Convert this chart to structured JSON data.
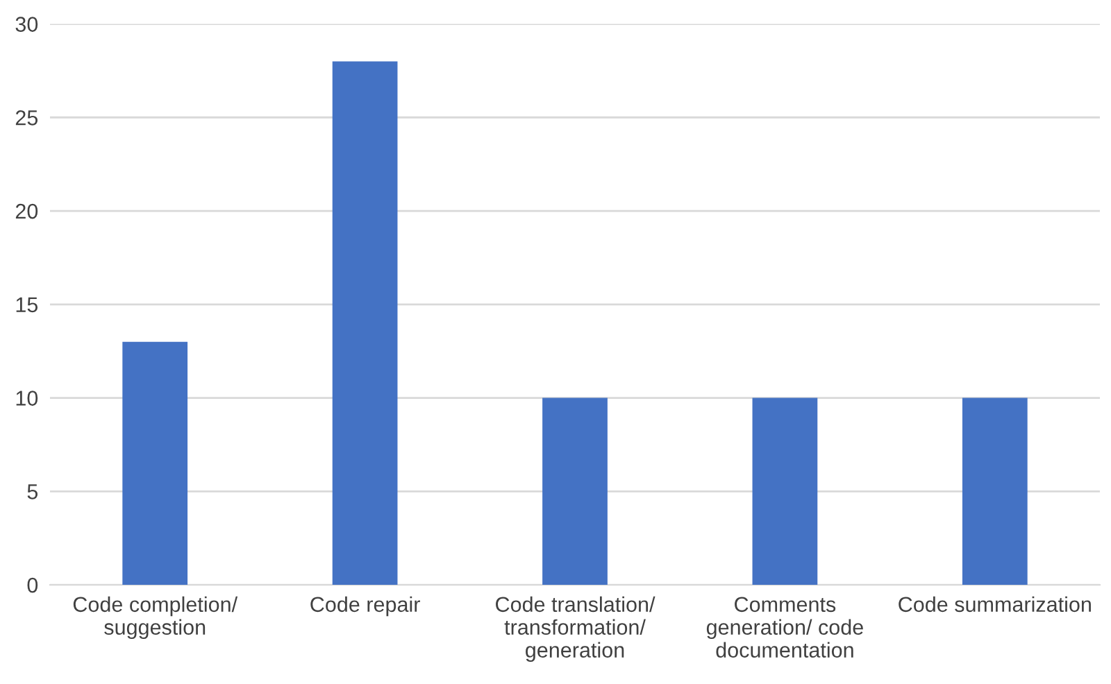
{
  "chart_data": {
    "type": "bar",
    "categories": [
      "Code completion/\nsuggestion",
      "Code repair",
      "Code translation/\ntransformation/\ngeneration",
      "Comments\ngeneration/ code\ndocumentation",
      "Code summarization"
    ],
    "values": [
      13,
      28,
      10,
      10,
      10
    ],
    "color": "#4472c4",
    "ylim": [
      0,
      30
    ],
    "yticks": [
      0,
      5,
      10,
      15,
      20,
      25,
      30
    ],
    "grid": "y",
    "legend": false
  }
}
